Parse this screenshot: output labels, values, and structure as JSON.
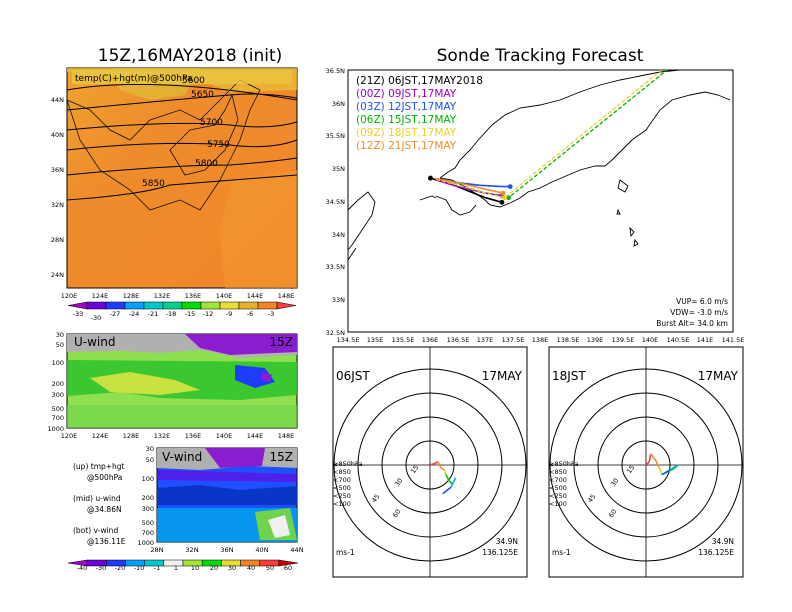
{
  "left_panel": {
    "title": "15Z,16MAY2018 (init)",
    "field_label": "temp(C)+hgt(m)@500hPa",
    "height_contours": [
      "5600",
      "5650",
      "5700",
      "5750",
      "5800",
      "5850"
    ],
    "lon_ticks": [
      "120E",
      "124E",
      "128E",
      "132E",
      "136E",
      "140E",
      "144E",
      "148E"
    ],
    "lat_ticks": [
      "44N",
      "40N",
      "36N",
      "32N",
      "28N",
      "24N"
    ],
    "temp_colorbar": {
      "ticks_upper": [
        "-33",
        "-27",
        "-24",
        "-21",
        "-18",
        "-15",
        "-12",
        "-9",
        "-6",
        "-3"
      ],
      "ticks_lower": [
        "-30"
      ],
      "colors": [
        "#a000c8",
        "#6e00dc",
        "#1e3cff",
        "#00a0ff",
        "#00c8c8",
        "#00d28c",
        "#00dc00",
        "#a0e632",
        "#e6dc32",
        "#e6af2d",
        "#f08228",
        "#fa3c3c"
      ]
    }
  },
  "uwind_panel": {
    "label": "U-wind",
    "time": "15Z",
    "lon_ticks": [
      "120E",
      "124E",
      "128E",
      "132E",
      "136E",
      "140E",
      "144E",
      "148E"
    ],
    "p_ticks": [
      "30",
      "50",
      "100",
      "200",
      "300",
      "500",
      "700",
      "1000"
    ]
  },
  "vwind_panel": {
    "label": "V-wind",
    "time": "15Z",
    "lat_ticks": [
      "28N",
      "32N",
      "36N",
      "40N",
      "44N"
    ],
    "p_ticks": [
      "30",
      "50",
      "100",
      "200",
      "300",
      "500",
      "700",
      "1000"
    ]
  },
  "notes": [
    {
      "line1": "(up) tmp+hgt",
      "line2": "@500hPa"
    },
    {
      "line1": "(mid) u-wind",
      "line2": "@34.86N"
    },
    {
      "line1": "(bot) v-wind",
      "line2": "@136.11E"
    }
  ],
  "wind_colorbar": {
    "ticks": [
      "-40",
      "-30",
      "-20",
      "-10",
      "-1",
      "1",
      "10",
      "20",
      "30",
      "40",
      "50",
      "60"
    ],
    "colors": [
      "#a000c8",
      "#6e00dc",
      "#1e3cff",
      "#00a0ff",
      "#00c8c8",
      "#f0f0f0",
      "#a0e632",
      "#00dc00",
      "#e6dc32",
      "#f08228",
      "#fa3c3c",
      "#c80000"
    ]
  },
  "tracking": {
    "title": "Sonde Tracking Forecast",
    "legend": [
      {
        "label": "(21Z)  06JST,17MAY2018",
        "color": "#000000"
      },
      {
        "label": "(00Z)  09JST,17MAY",
        "color": "#a000c8"
      },
      {
        "label": "(03Z)  12JST,17MAY",
        "color": "#1e50ff"
      },
      {
        "label": "(06Z)  15JST,17MAY",
        "color": "#00b400"
      },
      {
        "label": "(09Z)  18JST,17MAY",
        "color": "#f0d028"
      },
      {
        "label": "(12Z)  21JST,17MAY",
        "color": "#f08c28"
      }
    ],
    "lat_ticks": [
      "36.5N",
      "36N",
      "35.5N",
      "35N",
      "34.5N",
      "34N",
      "33.5N",
      "33N",
      "32.5N"
    ],
    "lon_ticks": [
      "134.5E",
      "135E",
      "135.5E",
      "136E",
      "136.5E",
      "137E",
      "137.5E",
      "138E",
      "138.5E",
      "139E",
      "139.5E",
      "140E",
      "140.5E",
      "141E",
      "141.5E"
    ],
    "params": [
      "VUP=  6.0  m/s",
      "VDW= -3.0  m/s",
      "Burst Alt=  34.0  km"
    ]
  },
  "hodo_left": {
    "time": "06JST",
    "date": "17MAY",
    "ring_labels": [
      "15",
      "30",
      "45",
      "60"
    ],
    "levels": [
      {
        "label": "≥850hPa",
        "color": "#fa3c3c"
      },
      {
        "label": "<850",
        "color": "#f08c28"
      },
      {
        "label": "<700",
        "color": "#e6c828"
      },
      {
        "label": "<500",
        "color": "#00c800"
      },
      {
        "label": "<250",
        "color": "#00b4c8"
      },
      {
        "label": "<100",
        "color": "#1e50ff"
      }
    ],
    "loc_lat": "34.9N",
    "loc_lon": "136.125E",
    "unit": "ms-1"
  },
  "hodo_right": {
    "time": "18JST",
    "date": "17MAY",
    "ring_labels": [
      "15",
      "30",
      "45",
      "60"
    ],
    "levels": [
      {
        "label": "≥850hPa",
        "color": "#fa3c3c"
      },
      {
        "label": "<850",
        "color": "#f08c28"
      },
      {
        "label": "<700",
        "color": "#e6c828"
      },
      {
        "label": "<500",
        "color": "#00c800"
      },
      {
        "label": "<250",
        "color": "#00b4c8"
      },
      {
        "label": "<100",
        "color": "#1e50ff"
      }
    ],
    "loc_lat": "34.9N",
    "loc_lon": "136.125E",
    "unit": "ms-1"
  },
  "chart_data": [
    {
      "type": "heatmap",
      "title": "15Z,16MAY2018 (init)",
      "field": "temp(C)+hgt(m)@500hPa",
      "x_range": [
        "120E",
        "150E"
      ],
      "y_range": [
        "22N",
        "47N"
      ],
      "height_contours_m": [
        5600,
        5650,
        5700,
        5750,
        5800,
        5850
      ]
    },
    {
      "type": "line",
      "title": "Sonde Tracking Forecast",
      "xlim": [
        134.5,
        141.5
      ],
      "ylim": [
        32.5,
        36.5
      ],
      "series": [
        {
          "name": "(21Z)  06JST,17MAY2018",
          "x": [
            136.0,
            136.4,
            136.7,
            137.0,
            137.3
          ],
          "y": [
            34.85,
            34.75,
            34.65,
            34.55,
            34.48
          ]
        },
        {
          "name": "(00Z)  09JST,17MAY",
          "x": [
            136.1,
            136.5,
            136.8,
            137.0,
            137.3
          ],
          "y": [
            34.82,
            34.72,
            34.66,
            34.62,
            34.58
          ]
        },
        {
          "name": "(03Z)  12JST,17MAY",
          "x": [
            136.1,
            136.5,
            136.9,
            137.3,
            137.45
          ],
          "y": [
            34.84,
            34.78,
            34.74,
            34.72,
            34.72
          ]
        },
        {
          "name": "(06Z)  15JST,17MAY",
          "x": [
            136.1,
            136.6,
            137.0,
            137.42,
            140.3
          ],
          "y": [
            34.83,
            34.73,
            34.62,
            34.55,
            36.5
          ]
        },
        {
          "name": "(09Z)  18JST,17MAY",
          "x": [
            136.1,
            136.6,
            137.0,
            137.35,
            140.2
          ],
          "y": [
            34.83,
            34.72,
            34.62,
            34.55,
            36.5
          ]
        },
        {
          "name": "(12Z)  21JST,17MAY",
          "x": [
            136.1,
            136.6,
            137.0,
            137.32
          ],
          "y": [
            34.84,
            34.76,
            34.68,
            34.62
          ]
        }
      ]
    },
    {
      "type": "line",
      "title": "06JST 17MAY",
      "x": [
        0,
        3,
        5,
        7,
        9,
        10,
        12,
        14,
        16,
        13,
        8
      ],
      "y": [
        0,
        1,
        2,
        -2,
        -3,
        -6,
        -10,
        -12,
        -8,
        -14,
        -18
      ]
    },
    {
      "type": "line",
      "title": "18JST 17MAY",
      "x": [
        0,
        2,
        3,
        6,
        8,
        10,
        14,
        18,
        20,
        15,
        10
      ],
      "y": [
        0,
        2,
        7,
        3,
        -1,
        -6,
        -4,
        -2,
        0,
        -3,
        -6
      ]
    }
  ]
}
